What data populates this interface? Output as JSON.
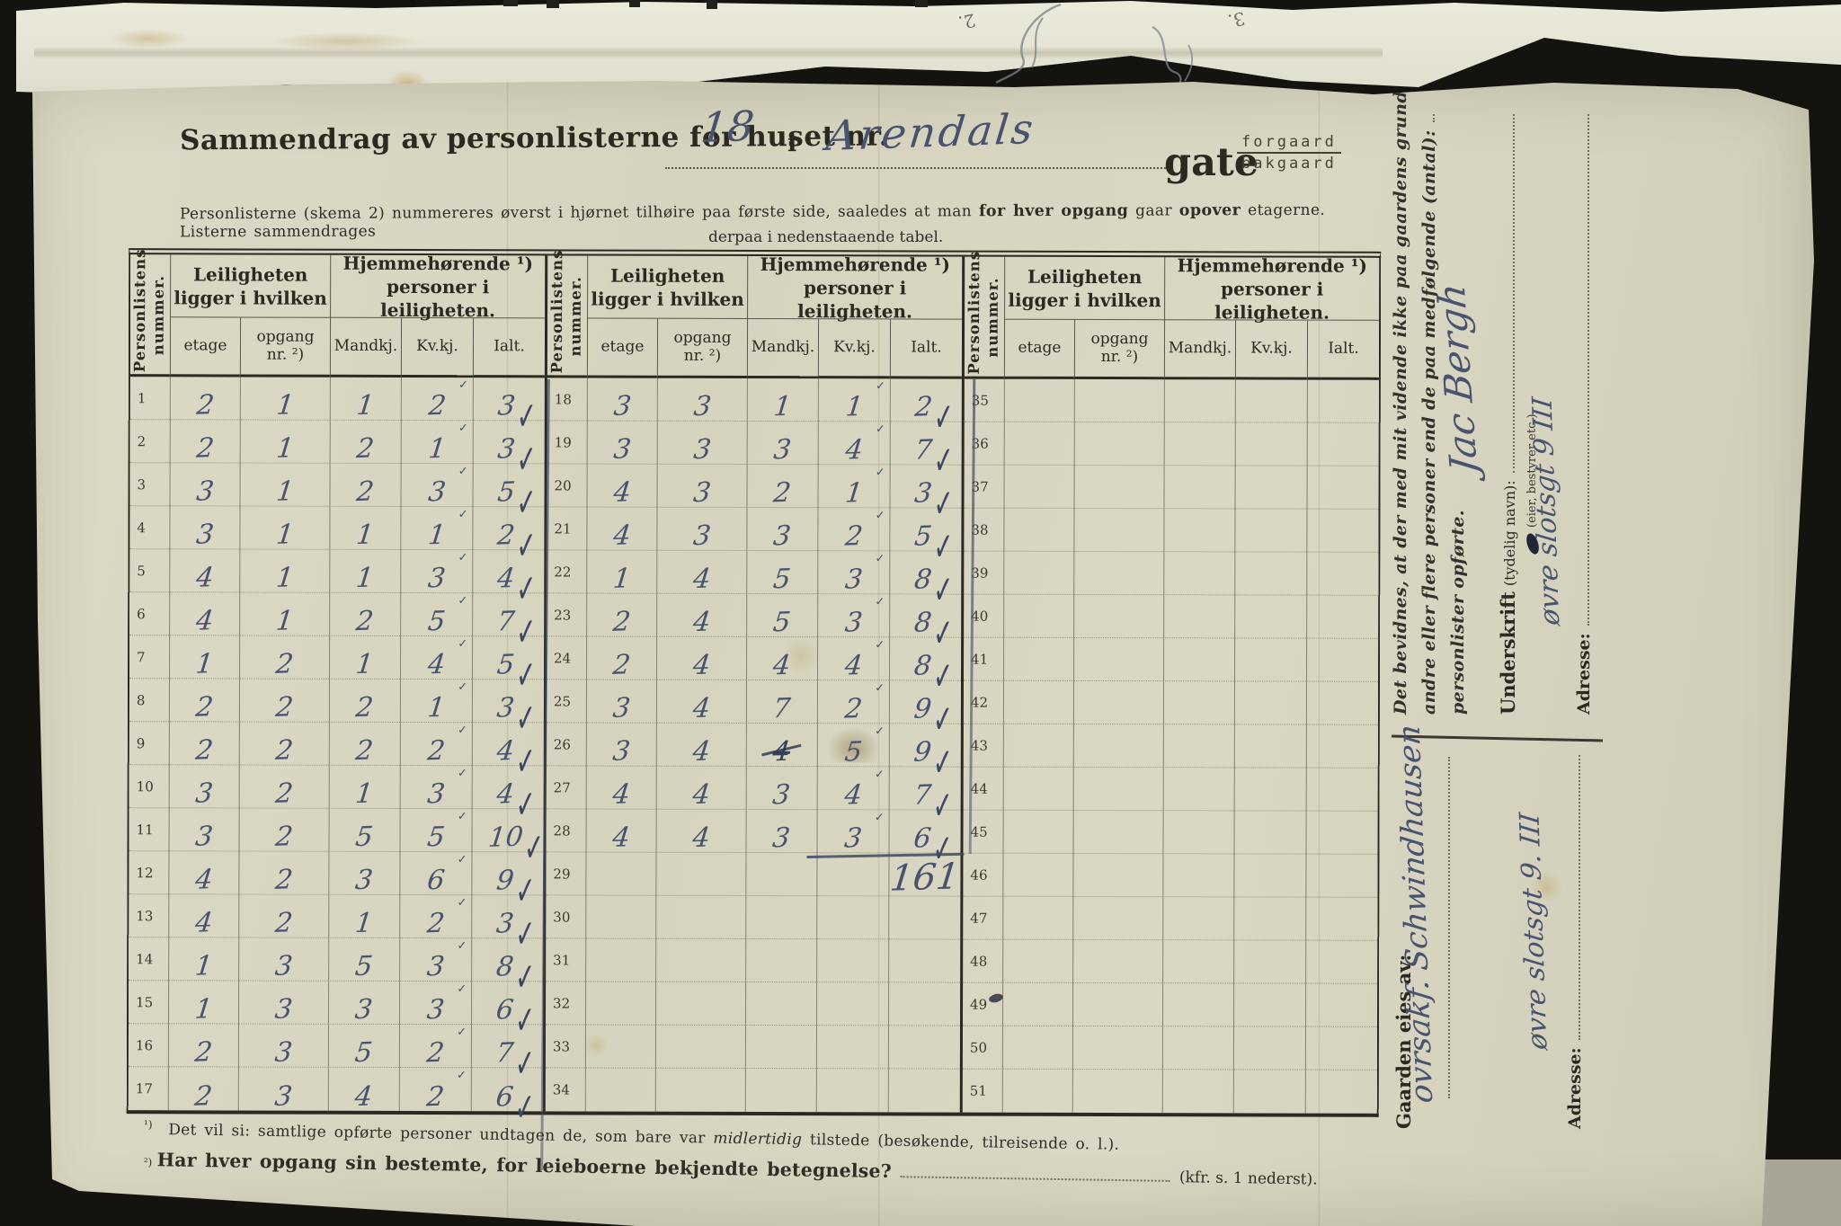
{
  "header": {
    "title_prefix": "Sammendrag av personlisterne for huset nr.",
    "house_number": "18",
    "connector": "i",
    "street_name": "Arendals",
    "gate_label": "gate",
    "gate_fraction_top": "forgaard",
    "gate_fraction_bottom": "bakgaard",
    "instructions_pre": "Personlisterne (skema 2) nummereres øverst i hjørnet tilhøire paa første side, saaledes at man",
    "instructions_bold1": "for hver opgang",
    "instructions_mid": "gaar",
    "instructions_bold2": "opover",
    "instructions_post": "etagerne.  Listerne sammendrages",
    "instructions_line2": "derpaa i nedenstaaende tabel."
  },
  "table": {
    "rownum_header": "Personlistens nummer.",
    "group1": [
      "Leiligheten",
      "ligger i hvilken"
    ],
    "group2": [
      "Hjemmehørende ¹)",
      "personer i leiligheten."
    ],
    "sub_headers": [
      [
        "etage"
      ],
      [
        "opgang",
        "nr. ²)"
      ],
      [
        "Mandkj."
      ],
      [
        "Kv.kj."
      ],
      [
        "Ialt."
      ]
    ],
    "check_glyph": "✓",
    "panels": [
      {
        "start": 1,
        "rows": [
          [
            "2",
            "1",
            "1",
            "2",
            "3"
          ],
          [
            "2",
            "1",
            "2",
            "1",
            "3"
          ],
          [
            "3",
            "1",
            "2",
            "3",
            "5"
          ],
          [
            "3",
            "1",
            "1",
            "1",
            "2"
          ],
          [
            "4",
            "1",
            "1",
            "3",
            "4"
          ],
          [
            "4",
            "1",
            "2",
            "5",
            "7"
          ],
          [
            "1",
            "2",
            "1",
            "4",
            "5"
          ],
          [
            "2",
            "2",
            "2",
            "1",
            "3"
          ],
          [
            "2",
            "2",
            "2",
            "2",
            "4"
          ],
          [
            "3",
            "2",
            "1",
            "3",
            "4"
          ],
          [
            "3",
            "2",
            "5",
            "5",
            "10"
          ],
          [
            "4",
            "2",
            "3",
            "6",
            "9"
          ],
          [
            "4",
            "2",
            "1",
            "2",
            "3"
          ],
          [
            "1",
            "3",
            "5",
            "3",
            "8"
          ],
          [
            "1",
            "3",
            "3",
            "3",
            "6"
          ],
          [
            "2",
            "3",
            "5",
            "2",
            "7"
          ],
          [
            "2",
            "3",
            "4",
            "2",
            "6"
          ]
        ]
      },
      {
        "start": 18,
        "rows": [
          [
            "3",
            "3",
            "1",
            "1",
            "2"
          ],
          [
            "3",
            "3",
            "3",
            "4",
            "7"
          ],
          [
            "4",
            "3",
            "2",
            "1",
            "3"
          ],
          [
            "4",
            "3",
            "3",
            "2",
            "5"
          ],
          [
            "1",
            "4",
            "5",
            "3",
            "8"
          ],
          [
            "2",
            "4",
            "5",
            "3",
            "8"
          ],
          [
            "2",
            "4",
            "4",
            "4",
            "8"
          ],
          [
            "3",
            "4",
            "7",
            "2",
            "9"
          ],
          [
            "3",
            "4",
            "4",
            "5",
            "9"
          ],
          [
            "4",
            "4",
            "3",
            "4",
            "7"
          ],
          [
            "4",
            "4",
            "3",
            "3",
            "6"
          ]
        ]
      },
      {
        "start": 35,
        "rows": []
      }
    ],
    "grand_total": "161",
    "grand_total_row": 29,
    "corrections": [
      {
        "row": 26,
        "col": "mandkj",
        "type": "struck"
      },
      {
        "row": 26,
        "col": "kv",
        "type": "smudge"
      }
    ]
  },
  "footnotes": {
    "f1_marker": "¹)",
    "f1_pre": "Det vil si: samtlige opførte personer undtagen de, som bare var",
    "f1_italic": "midlertidig",
    "f1_post": "tilstede (besøkende, tilreisende o. l.).",
    "f2_marker": "²)",
    "f2_question": "Har hver opgang sin bestemte, for leieboerne bekjendte betegnelse?",
    "f2_tail": "(kfr. s. 1 nederst)."
  },
  "sidebar": {
    "certify_line1": "Det bevidnes, at der med mit vidende ikke paa gaardens grund bor",
    "certify_line2": "andre eller flere personer end de paa medfølgende (antal):",
    "certify_line3": "personlister opførte.",
    "signature_label": "Underskrift",
    "signature_label_detail": "(tydelig navn):",
    "signature_value": "Jac Bergh",
    "signature_sub_label": "(eier, bestyrer etc.)",
    "address_label": "Adresse:",
    "address_value": "øvre slotsgt 9 III",
    "owner_label": "Gaarden eies av:",
    "owner_value": "ovrsakf. Schwindhausen",
    "owner_address_label": "Adresse:",
    "owner_address_value": "øvre slotsgt 9. III"
  },
  "scan_artifacts": {
    "top_numeral_left": "2.",
    "top_numeral_right": "3.",
    "ink_color": "#49536e",
    "paper_color": "#d9d7c3",
    "background_color": "#141310"
  }
}
